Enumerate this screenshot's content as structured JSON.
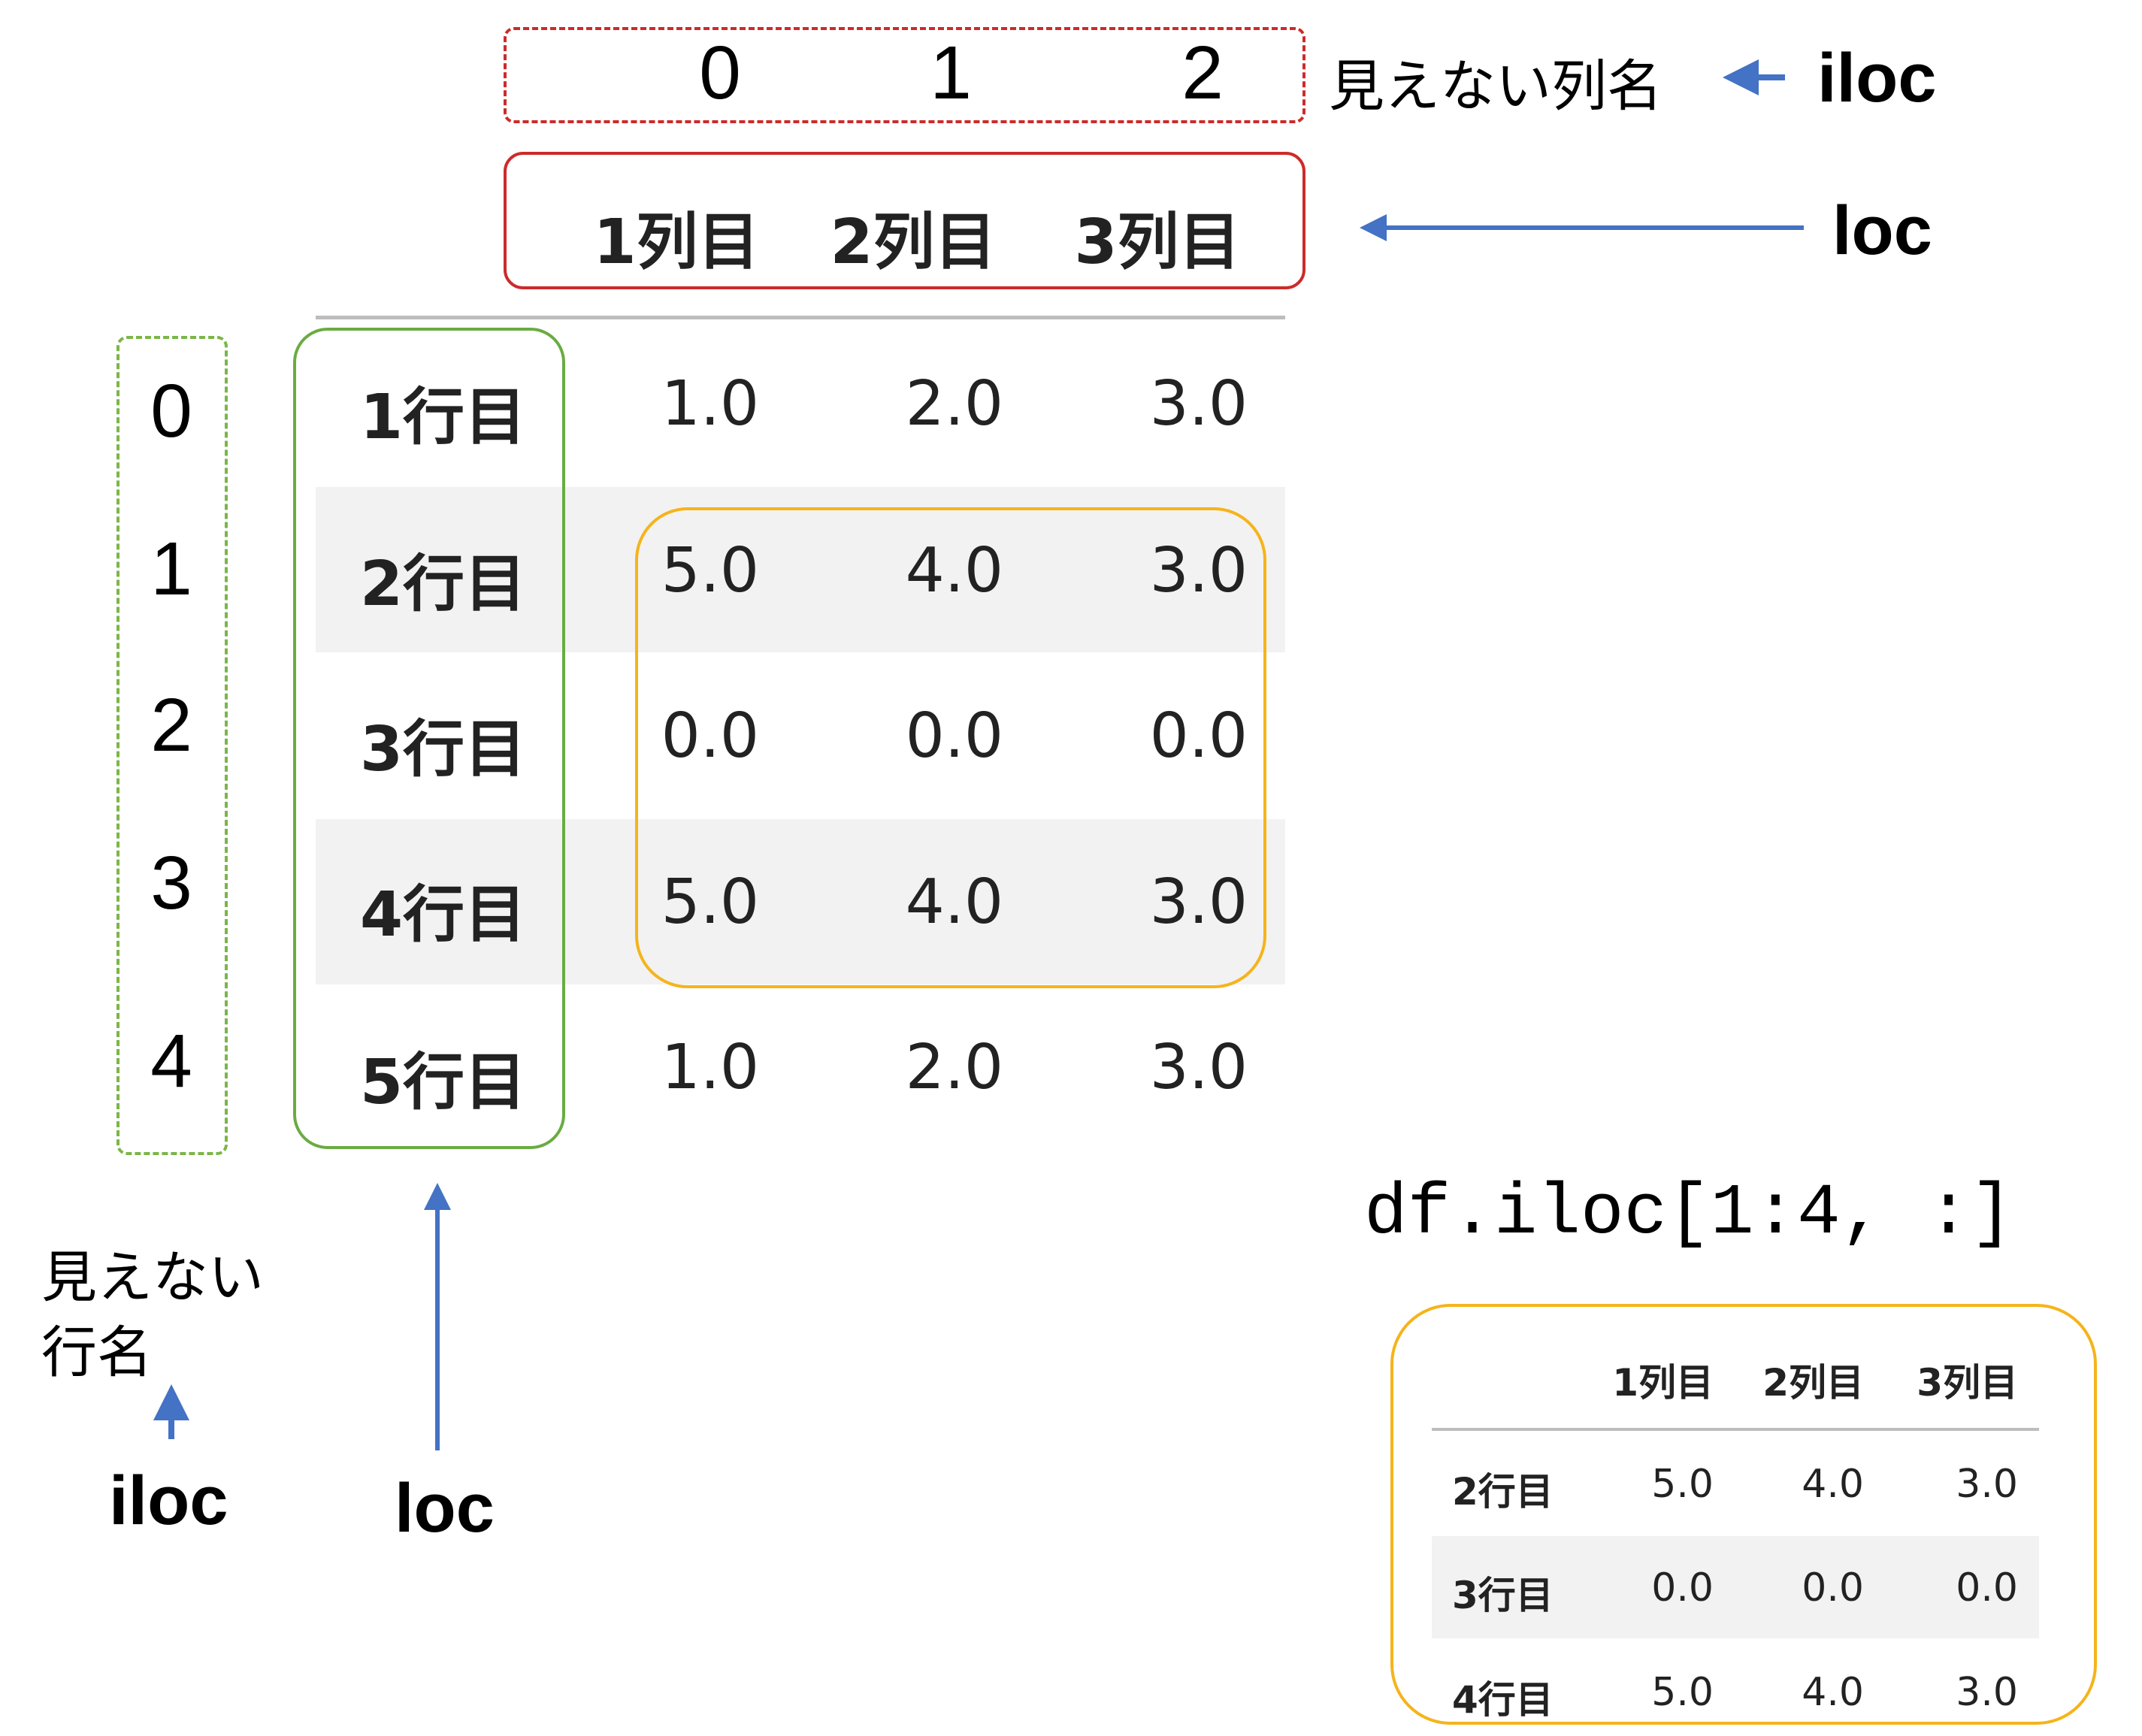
{
  "top_header": {
    "iloc_columns": [
      "0",
      "1",
      "2"
    ],
    "invisible_columns_note": "見えない列名",
    "iloc_tag": "iloc",
    "loc_tag": "loc",
    "loc_columns": [
      "1列目",
      "2列目",
      "3列目"
    ]
  },
  "left_side": {
    "iloc_rows": [
      "0",
      "1",
      "2",
      "3",
      "4"
    ],
    "invisible_rows_note_line1": "見えない",
    "invisible_rows_note_line2": "行名",
    "iloc_tag": "iloc",
    "loc_tag": "loc"
  },
  "main_table": {
    "row_labels": [
      "1行目",
      "2行目",
      "3行目",
      "4行目",
      "5行目"
    ],
    "rows": [
      [
        "1.0",
        "2.0",
        "3.0"
      ],
      [
        "5.0",
        "4.0",
        "3.0"
      ],
      [
        "0.0",
        "0.0",
        "0.0"
      ],
      [
        "5.0",
        "4.0",
        "3.0"
      ],
      [
        "1.0",
        "2.0",
        "3.0"
      ]
    ]
  },
  "code": "df.iloc[1:4, :]",
  "result_table": {
    "columns": [
      "1列目",
      "2列目",
      "3列目"
    ],
    "row_labels": [
      "2行目",
      "3行目",
      "4行目"
    ],
    "rows": [
      [
        "5.0",
        "4.0",
        "3.0"
      ],
      [
        "0.0",
        "0.0",
        "0.0"
      ],
      [
        "5.0",
        "4.0",
        "3.0"
      ]
    ]
  },
  "colors": {
    "iloc_highlight": "#cc2b2b",
    "row_highlight": "#6aab43",
    "selection_highlight": "#f5b41c",
    "arrow": "#4472c4"
  }
}
